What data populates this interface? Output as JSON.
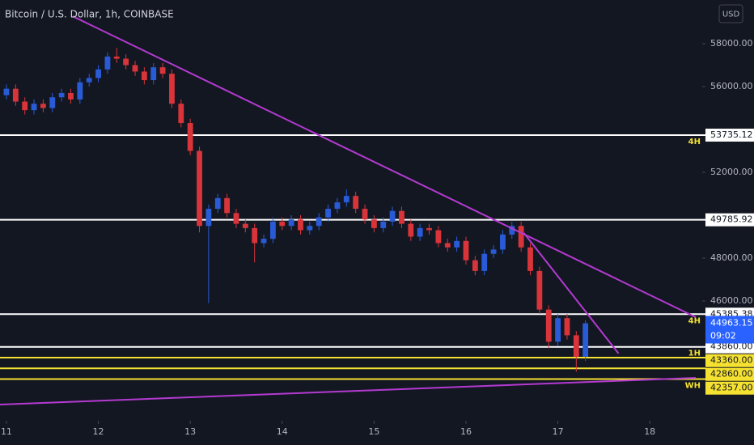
{
  "chart_data": {
    "type": "candlestick",
    "title": "Bitcoin / U.S. Dollar, 1h, COINBASE",
    "currency": "USD",
    "up_color": "#2a5bd7",
    "down_color": "#d8343a",
    "x": [
      11,
      11.1,
      11.2,
      11.3,
      11.4,
      11.5,
      11.6,
      11.7,
      11.8,
      11.9,
      12,
      12.1,
      12.2,
      12.3,
      12.4,
      12.5,
      12.6,
      12.7,
      12.8,
      12.9,
      13,
      13.1,
      13.2,
      13.3,
      13.4,
      13.5,
      13.6,
      13.7,
      13.8,
      13.9,
      14,
      14.1,
      14.2,
      14.3,
      14.4,
      14.5,
      14.6,
      14.7,
      14.8,
      14.9,
      15,
      15.1,
      15.2,
      15.3,
      15.4,
      15.5,
      15.6,
      15.7,
      15.8,
      15.9,
      16,
      16.1,
      16.2,
      16.3,
      16.4,
      16.5,
      16.6,
      16.7,
      16.8,
      16.9,
      17,
      17.1,
      17.2,
      17.3
    ],
    "open": [
      55600,
      55900,
      55300,
      54900,
      55200,
      55000,
      55500,
      55700,
      55400,
      56200,
      56400,
      56800,
      57400,
      57300,
      57000,
      56700,
      56300,
      56900,
      56600,
      55200,
      54300,
      53000,
      49500,
      50300,
      50800,
      50100,
      49600,
      49400,
      48700,
      48900,
      49700,
      49500,
      49800,
      49300,
      49500,
      49900,
      50300,
      50600,
      50900,
      50300,
      49800,
      49400,
      49700,
      50200,
      49600,
      49000,
      49400,
      49300,
      48700,
      48500,
      48800,
      47900,
      47400,
      48200,
      48400,
      49100,
      49500,
      48500,
      47400,
      45600,
      44100,
      45200,
      44400,
      43400
    ],
    "high": [
      56100,
      56100,
      55500,
      55400,
      55400,
      55700,
      55900,
      55900,
      56400,
      56600,
      57000,
      57600,
      57800,
      57500,
      57200,
      56900,
      57100,
      57100,
      56800,
      55400,
      54500,
      53200,
      50500,
      51000,
      51000,
      50300,
      49800,
      49600,
      49100,
      49900,
      49900,
      50000,
      50000,
      49700,
      50100,
      50500,
      50800,
      51200,
      51100,
      50500,
      50000,
      49900,
      50400,
      50400,
      49800,
      49600,
      49600,
      49500,
      48900,
      49000,
      49000,
      48100,
      48400,
      48600,
      49300,
      49700,
      49700,
      48700,
      47600,
      45800,
      45400,
      45400,
      44600,
      45100
    ],
    "low": [
      55400,
      55100,
      54700,
      54700,
      54800,
      54800,
      55300,
      55200,
      55200,
      56000,
      56200,
      56600,
      57100,
      56800,
      56500,
      56100,
      56100,
      56400,
      55000,
      54100,
      52800,
      49200,
      45900,
      50100,
      49900,
      49400,
      49200,
      47800,
      48500,
      48700,
      49300,
      49300,
      49100,
      49100,
      49300,
      49700,
      50100,
      50400,
      50100,
      49600,
      49200,
      49200,
      49500,
      49400,
      48800,
      48800,
      49100,
      48500,
      48300,
      48300,
      47700,
      47200,
      47200,
      48000,
      48200,
      48900,
      48300,
      47200,
      45400,
      43800,
      43900,
      44200,
      42700,
      43200
    ],
    "close": [
      55900,
      55300,
      54900,
      55200,
      55000,
      55500,
      55700,
      55400,
      56200,
      56400,
      56800,
      57400,
      57300,
      57000,
      56700,
      56300,
      56900,
      56600,
      55200,
      54300,
      53000,
      49500,
      50300,
      50800,
      50100,
      49600,
      49400,
      48700,
      48900,
      49700,
      49500,
      49800,
      49300,
      49500,
      49900,
      50300,
      50600,
      50900,
      50300,
      49800,
      49400,
      49700,
      50200,
      49600,
      49000,
      49400,
      49300,
      48700,
      48500,
      48800,
      47900,
      47400,
      48200,
      48400,
      49100,
      49500,
      48500,
      47400,
      45600,
      44100,
      45200,
      44400,
      43400,
      44960
    ],
    "xlim": [
      10.93,
      18.5
    ],
    "xticks": [
      11,
      12,
      13,
      14,
      15,
      16,
      17,
      18
    ],
    "ylim": [
      40415,
      60038
    ],
    "yticks": [
      {
        "value": 46000,
        "label": "46000.00"
      },
      {
        "value": 48000,
        "label": "48000.00"
      },
      {
        "value": 52000,
        "label": "52000.00"
      },
      {
        "value": 56000,
        "label": "56000.00"
      },
      {
        "value": 58000,
        "label": "58000.00"
      }
    ],
    "levels": [
      {
        "value": 53735.12,
        "color": "#ffffff",
        "tag": "4H"
      },
      {
        "value": 49785.92,
        "color": "#ffffff"
      },
      {
        "value": 45385.38,
        "color": "#ffffff",
        "tag": "4H"
      },
      {
        "value": {
          "value": 43860,
          "label": "43860.00"
        },
        "color": "#ffffff",
        "tag": "1H"
      },
      {
        "value": {
          "value": 43360,
          "label": "43360.00"
        },
        "color": "#f5e130"
      },
      {
        "value": {
          "value": 42860,
          "label": "42860.00"
        },
        "color": "#f5e130"
      },
      {
        "value": {
          "value": 42357,
          "label": "42357.00"
        },
        "color": "#f5e130",
        "tag": "WH"
      }
    ],
    "trendlines": [
      {
        "x": [
          11.72,
          18.5
        ],
        "y": [
          59280,
          45245
        ],
        "color": "#b43ad1"
      },
      {
        "x": [
          16.63,
          17.66
        ],
        "y": [
          49170,
          43550
        ],
        "color": "#b43ad1"
      },
      {
        "x": [
          10.93,
          18.5
        ],
        "y": [
          41170,
          42415
        ],
        "color": "#b43ad1"
      }
    ],
    "last_price": 44963.15,
    "countdown": "09:02",
    "last_price_color": "#2962ff"
  }
}
